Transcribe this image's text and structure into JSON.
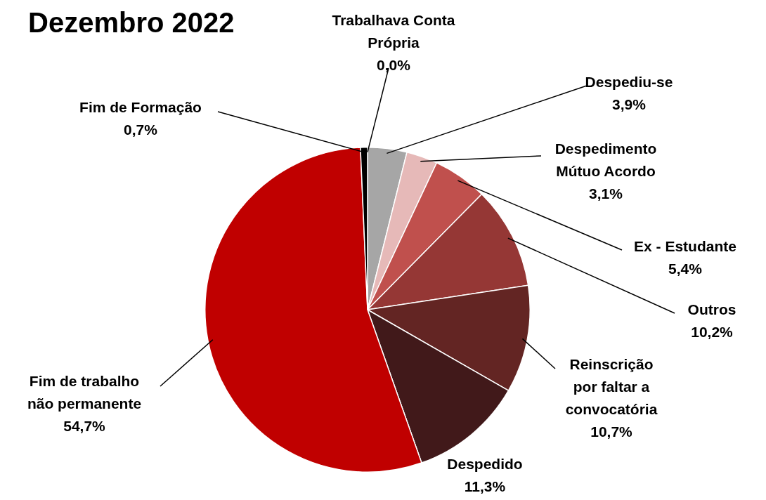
{
  "chart_data": {
    "type": "pie",
    "title": "Dezembro 2022",
    "categories": [
      "Trabalhava Conta Própria",
      "Despediu-se",
      "Despedimento Mútuo Acordo",
      "Ex - Estudante",
      "Outros",
      "Reinscrição por faltar a convocatória",
      "Despedido",
      "Fim de trabalho não permanente",
      "Fim de Formação"
    ],
    "values": [
      0.0,
      3.9,
      3.1,
      5.4,
      10.2,
      10.7,
      11.3,
      54.7,
      0.7
    ],
    "value_labels": [
      "0,0%",
      "3,9%",
      "3,1%",
      "5,4%",
      "10,2%",
      "10,7%",
      "11,3%",
      "54,7%",
      "0,7%"
    ],
    "colors": [
      "#000000",
      "#a6a6a6",
      "#e6b9b8",
      "#c0504d",
      "#953735",
      "#632523",
      "#41191a",
      "#c00000",
      "#000000"
    ],
    "legend": false
  }
}
